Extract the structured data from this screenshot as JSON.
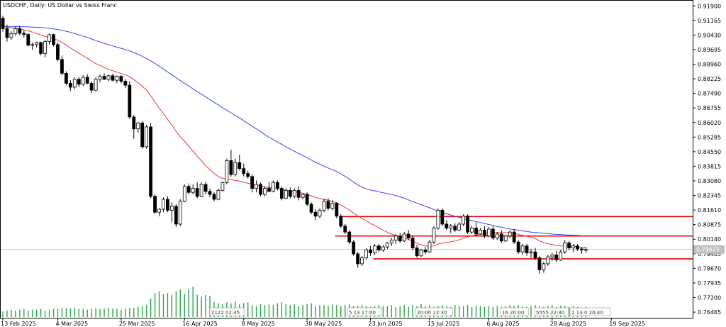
{
  "window": {
    "title": "USDCHF, Daily:  US Dollar vs Swiss Franc"
  },
  "colors": {
    "ma_fast": "#f03434",
    "ma_slow": "#3a46e8",
    "levels": "#e60000",
    "volume": "#2ea24a",
    "candle": "#000000",
    "bg": "#ffffff"
  },
  "chart_data": {
    "type": "candlestick",
    "symbol": "USDCHF",
    "timeframe": "Daily",
    "title": "USDCHF, Daily:  US Dollar vs Swiss Franc",
    "y_ticks": [
      "0.91900",
      "0.91165",
      "0.90430",
      "0.89695",
      "0.88960",
      "0.88225",
      "0.87490",
      "0.86755",
      "0.86020",
      "0.85285",
      "0.84550",
      "0.83815",
      "0.83080",
      "0.82345",
      "0.81610",
      "0.80875",
      "0.80140",
      "0.79405",
      "0.78670",
      "0.77935",
      "0.77200",
      "0.76465"
    ],
    "ylim": [
      0.7618,
      0.9216
    ],
    "x_ticks": [
      "13 Feb 2025",
      "4 Mar 2025",
      "25 Mar 2025",
      "16 Apr 2025",
      "8 May 2025",
      "30 May 2025",
      "23 Jun 2025",
      "15 Jul 2025",
      "6 Aug 2025",
      "28 Aug 2025",
      "19 Sep 2025"
    ],
    "current_price": 0.79625,
    "current_price_label": "0.79625",
    "levels": [
      0.8128,
      0.803,
      0.7915
    ],
    "ohlc": [
      [
        0.9128,
        0.914,
        0.906,
        0.9075
      ],
      [
        0.9075,
        0.9095,
        0.901,
        0.903
      ],
      [
        0.903,
        0.9062,
        0.902,
        0.905
      ],
      [
        0.905,
        0.9085,
        0.904,
        0.9075
      ],
      [
        0.9075,
        0.909,
        0.9042,
        0.9052
      ],
      [
        0.9052,
        0.9067,
        0.903,
        0.9046
      ],
      [
        0.9046,
        0.9053,
        0.8985,
        0.8992
      ],
      [
        0.8992,
        0.9005,
        0.8968,
        0.8995
      ],
      [
        0.8995,
        0.901,
        0.898,
        0.9005
      ],
      [
        0.9005,
        0.901,
        0.894,
        0.895
      ],
      [
        0.895,
        0.902,
        0.893,
        0.901
      ],
      [
        0.901,
        0.905,
        0.8995,
        0.9045
      ],
      [
        0.9045,
        0.905,
        0.8985,
        0.8995
      ],
      [
        0.8995,
        0.9005,
        0.891,
        0.892
      ],
      [
        0.892,
        0.894,
        0.884,
        0.885
      ],
      [
        0.885,
        0.886,
        0.879,
        0.88
      ],
      [
        0.88,
        0.8815,
        0.876,
        0.878
      ],
      [
        0.878,
        0.883,
        0.877,
        0.882
      ],
      [
        0.882,
        0.883,
        0.878,
        0.8795
      ],
      [
        0.8795,
        0.884,
        0.8785,
        0.883
      ],
      [
        0.883,
        0.8845,
        0.8795,
        0.88
      ],
      [
        0.88,
        0.881,
        0.875,
        0.8765
      ],
      [
        0.8765,
        0.883,
        0.876,
        0.882
      ],
      [
        0.882,
        0.8845,
        0.8805,
        0.8835
      ],
      [
        0.8835,
        0.885,
        0.8815,
        0.882
      ],
      [
        0.882,
        0.8845,
        0.881,
        0.8838
      ],
      [
        0.8838,
        0.8848,
        0.881,
        0.8815
      ],
      [
        0.8815,
        0.884,
        0.88,
        0.8835
      ],
      [
        0.8835,
        0.884,
        0.88,
        0.881
      ],
      [
        0.881,
        0.882,
        0.8775,
        0.879
      ],
      [
        0.879,
        0.881,
        0.862,
        0.863
      ],
      [
        0.863,
        0.864,
        0.852,
        0.857
      ],
      [
        0.857,
        0.8605,
        0.855,
        0.86
      ],
      [
        0.86,
        0.861,
        0.847,
        0.848
      ],
      [
        0.848,
        0.859,
        0.847,
        0.858
      ],
      [
        0.858,
        0.86,
        0.822,
        0.823
      ],
      [
        0.823,
        0.824,
        0.814,
        0.815
      ],
      [
        0.815,
        0.817,
        0.813,
        0.8165
      ],
      [
        0.8165,
        0.8225,
        0.815,
        0.8215
      ],
      [
        0.8215,
        0.823,
        0.815,
        0.816
      ],
      [
        0.816,
        0.82,
        0.81,
        0.818
      ],
      [
        0.818,
        0.819,
        0.8075,
        0.809
      ],
      [
        0.809,
        0.8215,
        0.808,
        0.8205
      ],
      [
        0.8205,
        0.829,
        0.82,
        0.828
      ],
      [
        0.828,
        0.8295,
        0.824,
        0.825
      ],
      [
        0.825,
        0.829,
        0.824,
        0.827
      ],
      [
        0.827,
        0.83,
        0.822,
        0.823
      ],
      [
        0.823,
        0.83,
        0.8225,
        0.829
      ],
      [
        0.829,
        0.8305,
        0.824,
        0.8255
      ],
      [
        0.8255,
        0.827,
        0.8225,
        0.824
      ],
      [
        0.824,
        0.825,
        0.8205,
        0.8215
      ],
      [
        0.8215,
        0.827,
        0.821,
        0.826
      ],
      [
        0.826,
        0.8305,
        0.8255,
        0.83
      ],
      [
        0.83,
        0.842,
        0.829,
        0.841
      ],
      [
        0.841,
        0.8465,
        0.833,
        0.834
      ],
      [
        0.834,
        0.842,
        0.833,
        0.84
      ],
      [
        0.84,
        0.844,
        0.836,
        0.837
      ],
      [
        0.837,
        0.8395,
        0.833,
        0.8345
      ],
      [
        0.8345,
        0.836,
        0.832,
        0.833
      ],
      [
        0.833,
        0.834,
        0.825,
        0.827
      ],
      [
        0.827,
        0.831,
        0.825,
        0.829
      ],
      [
        0.829,
        0.83,
        0.823,
        0.824
      ],
      [
        0.824,
        0.828,
        0.823,
        0.827
      ],
      [
        0.827,
        0.83,
        0.825,
        0.8255
      ],
      [
        0.8255,
        0.831,
        0.825,
        0.83
      ],
      [
        0.83,
        0.831,
        0.826,
        0.827
      ],
      [
        0.827,
        0.828,
        0.821,
        0.822
      ],
      [
        0.822,
        0.827,
        0.8215,
        0.826
      ],
      [
        0.826,
        0.8275,
        0.822,
        0.823
      ],
      [
        0.823,
        0.827,
        0.822,
        0.826
      ],
      [
        0.826,
        0.828,
        0.821,
        0.8225
      ],
      [
        0.8225,
        0.8245,
        0.8215,
        0.824
      ],
      [
        0.824,
        0.825,
        0.818,
        0.819
      ],
      [
        0.819,
        0.82,
        0.814,
        0.815
      ],
      [
        0.815,
        0.8165,
        0.811,
        0.813
      ],
      [
        0.813,
        0.817,
        0.812,
        0.816
      ],
      [
        0.816,
        0.8215,
        0.815,
        0.8205
      ],
      [
        0.8205,
        0.822,
        0.816,
        0.817
      ],
      [
        0.817,
        0.821,
        0.816,
        0.8195
      ],
      [
        0.8195,
        0.82,
        0.812,
        0.813
      ],
      [
        0.813,
        0.814,
        0.807,
        0.808
      ],
      [
        0.808,
        0.809,
        0.804,
        0.805
      ],
      [
        0.805,
        0.806,
        0.799,
        0.8
      ],
      [
        0.8,
        0.801,
        0.793,
        0.794
      ],
      [
        0.794,
        0.795,
        0.787,
        0.789
      ],
      [
        0.789,
        0.793,
        0.788,
        0.792
      ],
      [
        0.792,
        0.797,
        0.791,
        0.796
      ],
      [
        0.796,
        0.798,
        0.793,
        0.7945
      ],
      [
        0.7945,
        0.799,
        0.7935,
        0.798
      ],
      [
        0.798,
        0.799,
        0.795,
        0.796
      ],
      [
        0.796,
        0.7985,
        0.795,
        0.7975
      ],
      [
        0.7975,
        0.8,
        0.7965,
        0.7995
      ],
      [
        0.7995,
        0.802,
        0.798,
        0.801
      ],
      [
        0.801,
        0.804,
        0.799,
        0.803
      ],
      [
        0.803,
        0.8045,
        0.7995,
        0.8005
      ],
      [
        0.8005,
        0.805,
        0.8,
        0.804
      ],
      [
        0.804,
        0.806,
        0.801,
        0.802
      ],
      [
        0.802,
        0.803,
        0.796,
        0.797
      ],
      [
        0.797,
        0.7985,
        0.792,
        0.793
      ],
      [
        0.793,
        0.7965,
        0.7925,
        0.796
      ],
      [
        0.796,
        0.7975,
        0.794,
        0.795
      ],
      [
        0.795,
        0.801,
        0.7945,
        0.8
      ],
      [
        0.8,
        0.808,
        0.799,
        0.807
      ],
      [
        0.807,
        0.817,
        0.806,
        0.816
      ],
      [
        0.816,
        0.817,
        0.808,
        0.809
      ],
      [
        0.809,
        0.811,
        0.806,
        0.807
      ],
      [
        0.807,
        0.809,
        0.8045,
        0.808
      ],
      [
        0.808,
        0.8095,
        0.805,
        0.806
      ],
      [
        0.806,
        0.81,
        0.8055,
        0.809
      ],
      [
        0.809,
        0.814,
        0.808,
        0.813
      ],
      [
        0.813,
        0.814,
        0.804,
        0.805
      ],
      [
        0.805,
        0.808,
        0.804,
        0.807
      ],
      [
        0.807,
        0.81,
        0.803,
        0.804
      ],
      [
        0.804,
        0.807,
        0.8035,
        0.806
      ],
      [
        0.806,
        0.808,
        0.802,
        0.803
      ],
      [
        0.803,
        0.8075,
        0.8025,
        0.8065
      ],
      [
        0.8065,
        0.808,
        0.801,
        0.802
      ],
      [
        0.802,
        0.805,
        0.801,
        0.804
      ],
      [
        0.804,
        0.806,
        0.7995,
        0.8005
      ],
      [
        0.8005,
        0.8035,
        0.8,
        0.803
      ],
      [
        0.803,
        0.806,
        0.802,
        0.805
      ],
      [
        0.805,
        0.8065,
        0.799,
        0.8
      ],
      [
        0.8,
        0.801,
        0.794,
        0.795
      ],
      [
        0.795,
        0.799,
        0.7935,
        0.798
      ],
      [
        0.798,
        0.799,
        0.793,
        0.7945
      ],
      [
        0.7945,
        0.7965,
        0.792,
        0.795
      ],
      [
        0.795,
        0.797,
        0.791,
        0.792
      ],
      [
        0.792,
        0.793,
        0.784,
        0.786
      ],
      [
        0.786,
        0.79,
        0.7845,
        0.789
      ],
      [
        0.789,
        0.7935,
        0.788,
        0.7925
      ],
      [
        0.7925,
        0.7945,
        0.7905,
        0.7935
      ],
      [
        0.7935,
        0.7955,
        0.79,
        0.791
      ],
      [
        0.791,
        0.796,
        0.7905,
        0.795
      ],
      [
        0.795,
        0.801,
        0.794,
        0.7995
      ],
      [
        0.7995,
        0.8005,
        0.796,
        0.797
      ],
      [
        0.797,
        0.799,
        0.795,
        0.798
      ],
      [
        0.798,
        0.799,
        0.7955,
        0.7965
      ],
      [
        0.7965,
        0.7975,
        0.794,
        0.796
      ],
      [
        0.796,
        0.7975,
        0.7945,
        0.7962
      ]
    ],
    "ma_fast_start_index": 0,
    "ma_fast": [
      0.9085,
      0.9083,
      0.908,
      0.9077,
      0.9073,
      0.9069,
      0.9064,
      0.9058,
      0.9051,
      0.9043,
      0.9036,
      0.903,
      0.9024,
      0.9017,
      0.9006,
      0.8993,
      0.8978,
      0.8965,
      0.8951,
      0.8939,
      0.8926,
      0.8912,
      0.8899,
      0.889,
      0.888,
      0.887,
      0.8863,
      0.8856,
      0.8849,
      0.8843,
      0.8833,
      0.8818,
      0.8803,
      0.8784,
      0.8766,
      0.8737,
      0.8705,
      0.8675,
      0.8647,
      0.8618,
      0.8589,
      0.8558,
      0.853,
      0.8508,
      0.8483,
      0.8458,
      0.8432,
      0.841,
      0.8385,
      0.8365,
      0.8345,
      0.833,
      0.832,
      0.8318,
      0.8314,
      0.831,
      0.8307,
      0.8301,
      0.8296,
      0.829,
      0.8286,
      0.8282,
      0.8277,
      0.8274,
      0.8272,
      0.8271,
      0.8265,
      0.8261,
      0.8256,
      0.8254,
      0.825,
      0.8246,
      0.824,
      0.8233,
      0.8225,
      0.8219,
      0.8215,
      0.821,
      0.8205,
      0.8197,
      0.8186,
      0.8174,
      0.8161,
      0.8146,
      0.8131,
      0.8118,
      0.8106,
      0.8093,
      0.8083,
      0.8071,
      0.806,
      0.8049,
      0.804,
      0.8032,
      0.8026,
      0.8019,
      0.8013,
      0.8004,
      0.7994,
      0.7986,
      0.798,
      0.7978,
      0.798,
      0.799,
      0.7995,
      0.7997,
      0.8001,
      0.8005,
      0.8011,
      0.802,
      0.8026,
      0.8031,
      0.8035,
      0.8039,
      0.8041,
      0.8044,
      0.8046,
      0.8048,
      0.8047,
      0.8047,
      0.8047,
      0.8044,
      0.8038,
      0.8034,
      0.8028,
      0.8023,
      0.8017,
      0.8005,
      0.7997,
      0.7991,
      0.7987,
      0.7982,
      0.798,
      0.798,
      0.7979,
      0.7978,
      0.7976,
      0.7973,
      0.7971
    ],
    "ma_slow_start_index": 0,
    "ma_slow": [
      0.9086,
      0.9086,
      0.9086,
      0.9086,
      0.9085,
      0.9085,
      0.9084,
      0.9083,
      0.9082,
      0.9081,
      0.9079,
      0.9077,
      0.9074,
      0.9071,
      0.9067,
      0.9062,
      0.9057,
      0.9051,
      0.9044,
      0.9038,
      0.9031,
      0.9023,
      0.9015,
      0.9008,
      0.9001,
      0.8994,
      0.8988,
      0.8982,
      0.8976,
      0.897,
      0.8963,
      0.8955,
      0.8946,
      0.8936,
      0.8925,
      0.8913,
      0.89,
      0.8886,
      0.8872,
      0.8857,
      0.8843,
      0.8828,
      0.8813,
      0.88,
      0.8786,
      0.8772,
      0.8758,
      0.8745,
      0.8731,
      0.8718,
      0.8704,
      0.869,
      0.8676,
      0.8664,
      0.8651,
      0.8638,
      0.8625,
      0.8611,
      0.8597,
      0.8583,
      0.857,
      0.8556,
      0.8541,
      0.8528,
      0.8516,
      0.8504,
      0.8492,
      0.848,
      0.8468,
      0.8457,
      0.8446,
      0.8436,
      0.8425,
      0.8413,
      0.8402,
      0.8392,
      0.8382,
      0.8373,
      0.8364,
      0.8355,
      0.8343,
      0.8331,
      0.8317,
      0.8302,
      0.8288,
      0.8276,
      0.8268,
      0.8262,
      0.8258,
      0.8253,
      0.8248,
      0.8244,
      0.8239,
      0.8234,
      0.8228,
      0.822,
      0.8212,
      0.8204,
      0.8196,
      0.8188,
      0.818,
      0.8172,
      0.8164,
      0.8157,
      0.8149,
      0.8142,
      0.8136,
      0.813,
      0.8124,
      0.8118,
      0.8113,
      0.8108,
      0.8103,
      0.8098,
      0.8093,
      0.8088,
      0.8083,
      0.8078,
      0.8074,
      0.807,
      0.8066,
      0.8063,
      0.8059,
      0.8056,
      0.8053,
      0.805,
      0.8048,
      0.8046,
      0.8044,
      0.8042,
      0.804,
      0.8038,
      0.8037,
      0.8036,
      0.8035,
      0.8034,
      0.8033,
      0.8032,
      0.8032
    ],
    "volume": [
      6,
      7,
      8,
      7,
      8,
      9,
      7,
      8,
      8,
      9,
      7,
      8,
      9,
      9,
      10,
      10,
      9,
      10,
      9,
      9,
      8,
      9,
      10,
      9,
      9,
      10,
      9,
      9,
      8,
      9,
      10,
      10,
      11,
      12,
      13,
      20,
      26,
      28,
      25,
      26,
      24,
      28,
      30,
      25,
      31,
      33,
      24,
      22,
      24,
      23,
      16,
      15,
      14,
      16,
      15,
      17,
      14,
      15,
      16,
      13,
      12,
      14,
      13,
      14,
      13,
      15,
      16,
      14,
      13,
      14,
      12,
      13,
      14,
      15,
      12,
      13,
      13,
      12,
      14,
      13,
      12,
      13,
      14,
      12,
      12,
      13,
      12,
      11,
      12,
      13,
      12,
      12,
      13,
      11,
      12,
      13,
      11,
      13,
      12,
      14,
      12,
      13,
      11,
      12,
      13,
      12,
      11,
      13,
      12,
      12,
      13,
      11,
      12,
      12,
      11,
      12,
      11,
      12,
      11,
      12,
      13,
      12,
      13,
      12,
      11,
      12,
      13,
      12,
      11,
      12,
      13,
      11,
      12,
      12,
      11,
      12,
      11,
      10,
      11
    ],
    "events": [
      "2122 02:45",
      "5 13 17:00",
      "20:00 22:30",
      "16 20:00",
      "5555 22:30",
      "2 13:0 20:40"
    ]
  }
}
